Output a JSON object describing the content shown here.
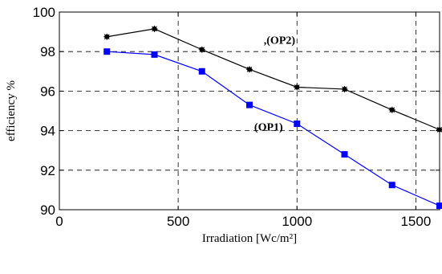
{
  "chart_data": {
    "type": "line",
    "title": "",
    "xlabel": "Irradiation [Wc/m²]",
    "ylabel": "efficiency  %",
    "xlim": [
      0,
      1600
    ],
    "ylim": [
      90,
      100
    ],
    "xticks": [
      0,
      500,
      1000,
      1500
    ],
    "yticks": [
      90,
      92,
      94,
      96,
      98,
      100
    ],
    "grid": true,
    "grid_style": "dashed",
    "x": [
      200,
      400,
      600,
      800,
      1000,
      1200,
      1400,
      1600
    ],
    "series": [
      {
        "values": [
          98.75,
          99.15,
          98.1,
          97.1,
          96.2,
          96.1,
          95.05,
          94.05
        ],
        "color": "#000000",
        "marker": "asterisk"
      },
      {
        "values": [
          98.0,
          97.85,
          97.0,
          95.3,
          94.35,
          92.8,
          91.25,
          90.2
        ],
        "color": "#0000ff",
        "marker": "square"
      }
    ],
    "annotations": [
      {
        "text": ",(OP2)",
        "x": 860,
        "y": 98.4
      },
      {
        "text": "(OP1)",
        "x": 820,
        "y": 94.0
      }
    ]
  }
}
